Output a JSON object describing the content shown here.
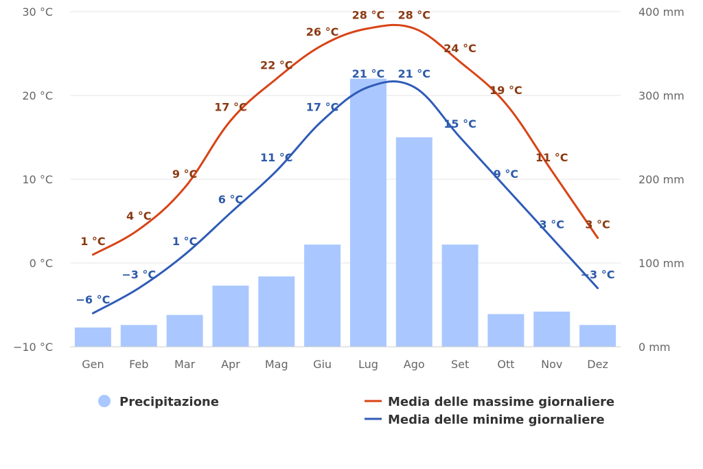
{
  "chart_data": {
    "type": "bar",
    "categories": [
      "Gen",
      "Feb",
      "Mar",
      "Apr",
      "Mag",
      "Giu",
      "Lug",
      "Ago",
      "Set",
      "Ott",
      "Nov",
      "Dez"
    ],
    "y_left": {
      "min": -10,
      "max": 30,
      "ticks": [
        -10,
        0,
        10,
        20,
        30
      ],
      "tick_labels": [
        "−10 °C",
        "0 °C",
        "10 °C",
        "20 °C",
        "30 °C"
      ]
    },
    "y_right": {
      "min": 0,
      "max": 400,
      "ticks": [
        0,
        100,
        200,
        300,
        400
      ],
      "tick_labels": [
        "0 mm",
        "100 mm",
        "200 mm",
        "300 mm",
        "400 mm"
      ]
    },
    "grid": true,
    "legend_position": "bottom",
    "series": [
      {
        "name": "Precipitazione",
        "kind": "bar",
        "axis": "right",
        "color": "#aac8ff",
        "values": [
          23,
          26,
          38,
          73,
          84,
          122,
          320,
          250,
          122,
          39,
          42,
          26
        ]
      },
      {
        "name": "Media delle massime giornaliere",
        "kind": "line",
        "axis": "left",
        "color": "#d84315",
        "values": [
          1,
          4,
          9,
          17,
          22,
          26,
          28,
          28,
          24,
          19,
          11,
          3
        ],
        "labels": [
          "1 °C",
          "4 °C",
          "9 °C",
          "17 °C",
          "22 °C",
          "26 °C",
          "28 °C",
          "28 °C",
          "24 °C",
          "19 °C",
          "11 °C",
          "3 °C"
        ]
      },
      {
        "name": "Media delle minime giornaliere",
        "kind": "line",
        "axis": "left",
        "color": "#2f5bb7",
        "values": [
          -6,
          -3,
          1,
          6,
          11,
          17,
          21,
          21,
          15,
          9,
          3,
          -3
        ],
        "labels": [
          "−6 °C",
          "−3 °C",
          "1 °C",
          "6 °C",
          "11 °C",
          "17 °C",
          "21 °C",
          "21 °C",
          "15 °C",
          "9 °C",
          "3 °C",
          "−3 °C"
        ]
      }
    ]
  }
}
